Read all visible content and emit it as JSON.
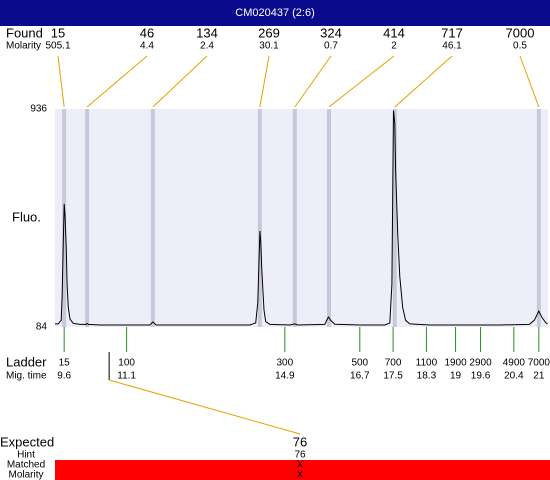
{
  "title": "CM020437 (2:6)",
  "found": {
    "label": "Found",
    "molarity_label": "Molarity",
    "peaks": [
      {
        "size": 15,
        "molarity": 505.1,
        "time": 9.6
      },
      {
        "size": 46,
        "molarity": 4.4,
        "time": 10.15
      },
      {
        "size": 134,
        "molarity": 2.4,
        "time": 11.73
      },
      {
        "size": 269,
        "molarity": 30.1,
        "time": 14.3
      },
      {
        "size": 324,
        "molarity": 0.7,
        "time": 15.14
      },
      {
        "size": 414,
        "molarity": 2,
        "time": 15.96
      },
      {
        "size": 717,
        "molarity": 46.1,
        "time": 17.54
      },
      {
        "size": 7000,
        "molarity": 0.5,
        "time": 21
      }
    ]
  },
  "chart_data": {
    "type": "line",
    "y_label": "Fluo.",
    "color": "#000000",
    "ylim": [
      84,
      936
    ],
    "yticks": [
      84,
      936
    ],
    "xlim": [
      9.38,
      21.22
    ],
    "x": [
      9.38,
      9.46,
      9.53,
      9.55,
      9.58,
      9.6,
      9.62,
      9.65,
      9.67,
      9.7,
      9.74,
      9.82,
      9.98,
      10.13,
      10.15,
      10.18,
      10.46,
      11.66,
      11.73,
      11.81,
      12.86,
      14.06,
      14.2,
      14.25,
      14.3,
      14.32,
      14.35,
      14.4,
      14.44,
      14.54,
      15.02,
      15.14,
      15.21,
      15.86,
      15.93,
      15.95,
      16.0,
      16.1,
      16.7,
      17.3,
      17.42,
      17.47,
      17.49,
      17.51,
      17.54,
      17.56,
      17.61,
      17.66,
      17.73,
      17.8,
      17.9,
      18.38,
      20.06,
      20.77,
      20.89,
      21.0,
      21.08,
      21.17,
      21.21
    ],
    "values": [
      96,
      96,
      110,
      200,
      420,
      565,
      520,
      400,
      250,
      160,
      115,
      98,
      94,
      94,
      98,
      94,
      92,
      92,
      104,
      92,
      92,
      92,
      100,
      180,
      459,
      420,
      300,
      150,
      105,
      94,
      92,
      96,
      92,
      94,
      118,
      123,
      110,
      95,
      92,
      92,
      100,
      250,
      600,
      930,
      880,
      700,
      450,
      280,
      160,
      110,
      96,
      92,
      92,
      94,
      110,
      146,
      120,
      100,
      96
    ]
  },
  "ladder": {
    "label": "Ladder",
    "time_label": "Mig. time",
    "peaks": [
      {
        "size": 15,
        "time": 9.6
      },
      {
        "size": 100,
        "time": 11.1
      },
      {
        "size": 300,
        "time": 14.9
      },
      {
        "size": 500,
        "time": 16.7
      },
      {
        "size": 700,
        "time": 17.5
      },
      {
        "size": 1100,
        "time": 18.3
      },
      {
        "size": 1900,
        "time": 19
      },
      {
        "size": 2900,
        "time": 19.6
      },
      {
        "size": 4900,
        "time": 20.4
      },
      {
        "size": 7000,
        "time": 21
      }
    ]
  },
  "expected": {
    "label": "Expected",
    "value": 76,
    "time": 10.68,
    "hint_label": "Hint",
    "hint": 76,
    "matched_label": "Matched",
    "matched": "X",
    "molarity_label": "Molarity",
    "molarity": "X"
  }
}
